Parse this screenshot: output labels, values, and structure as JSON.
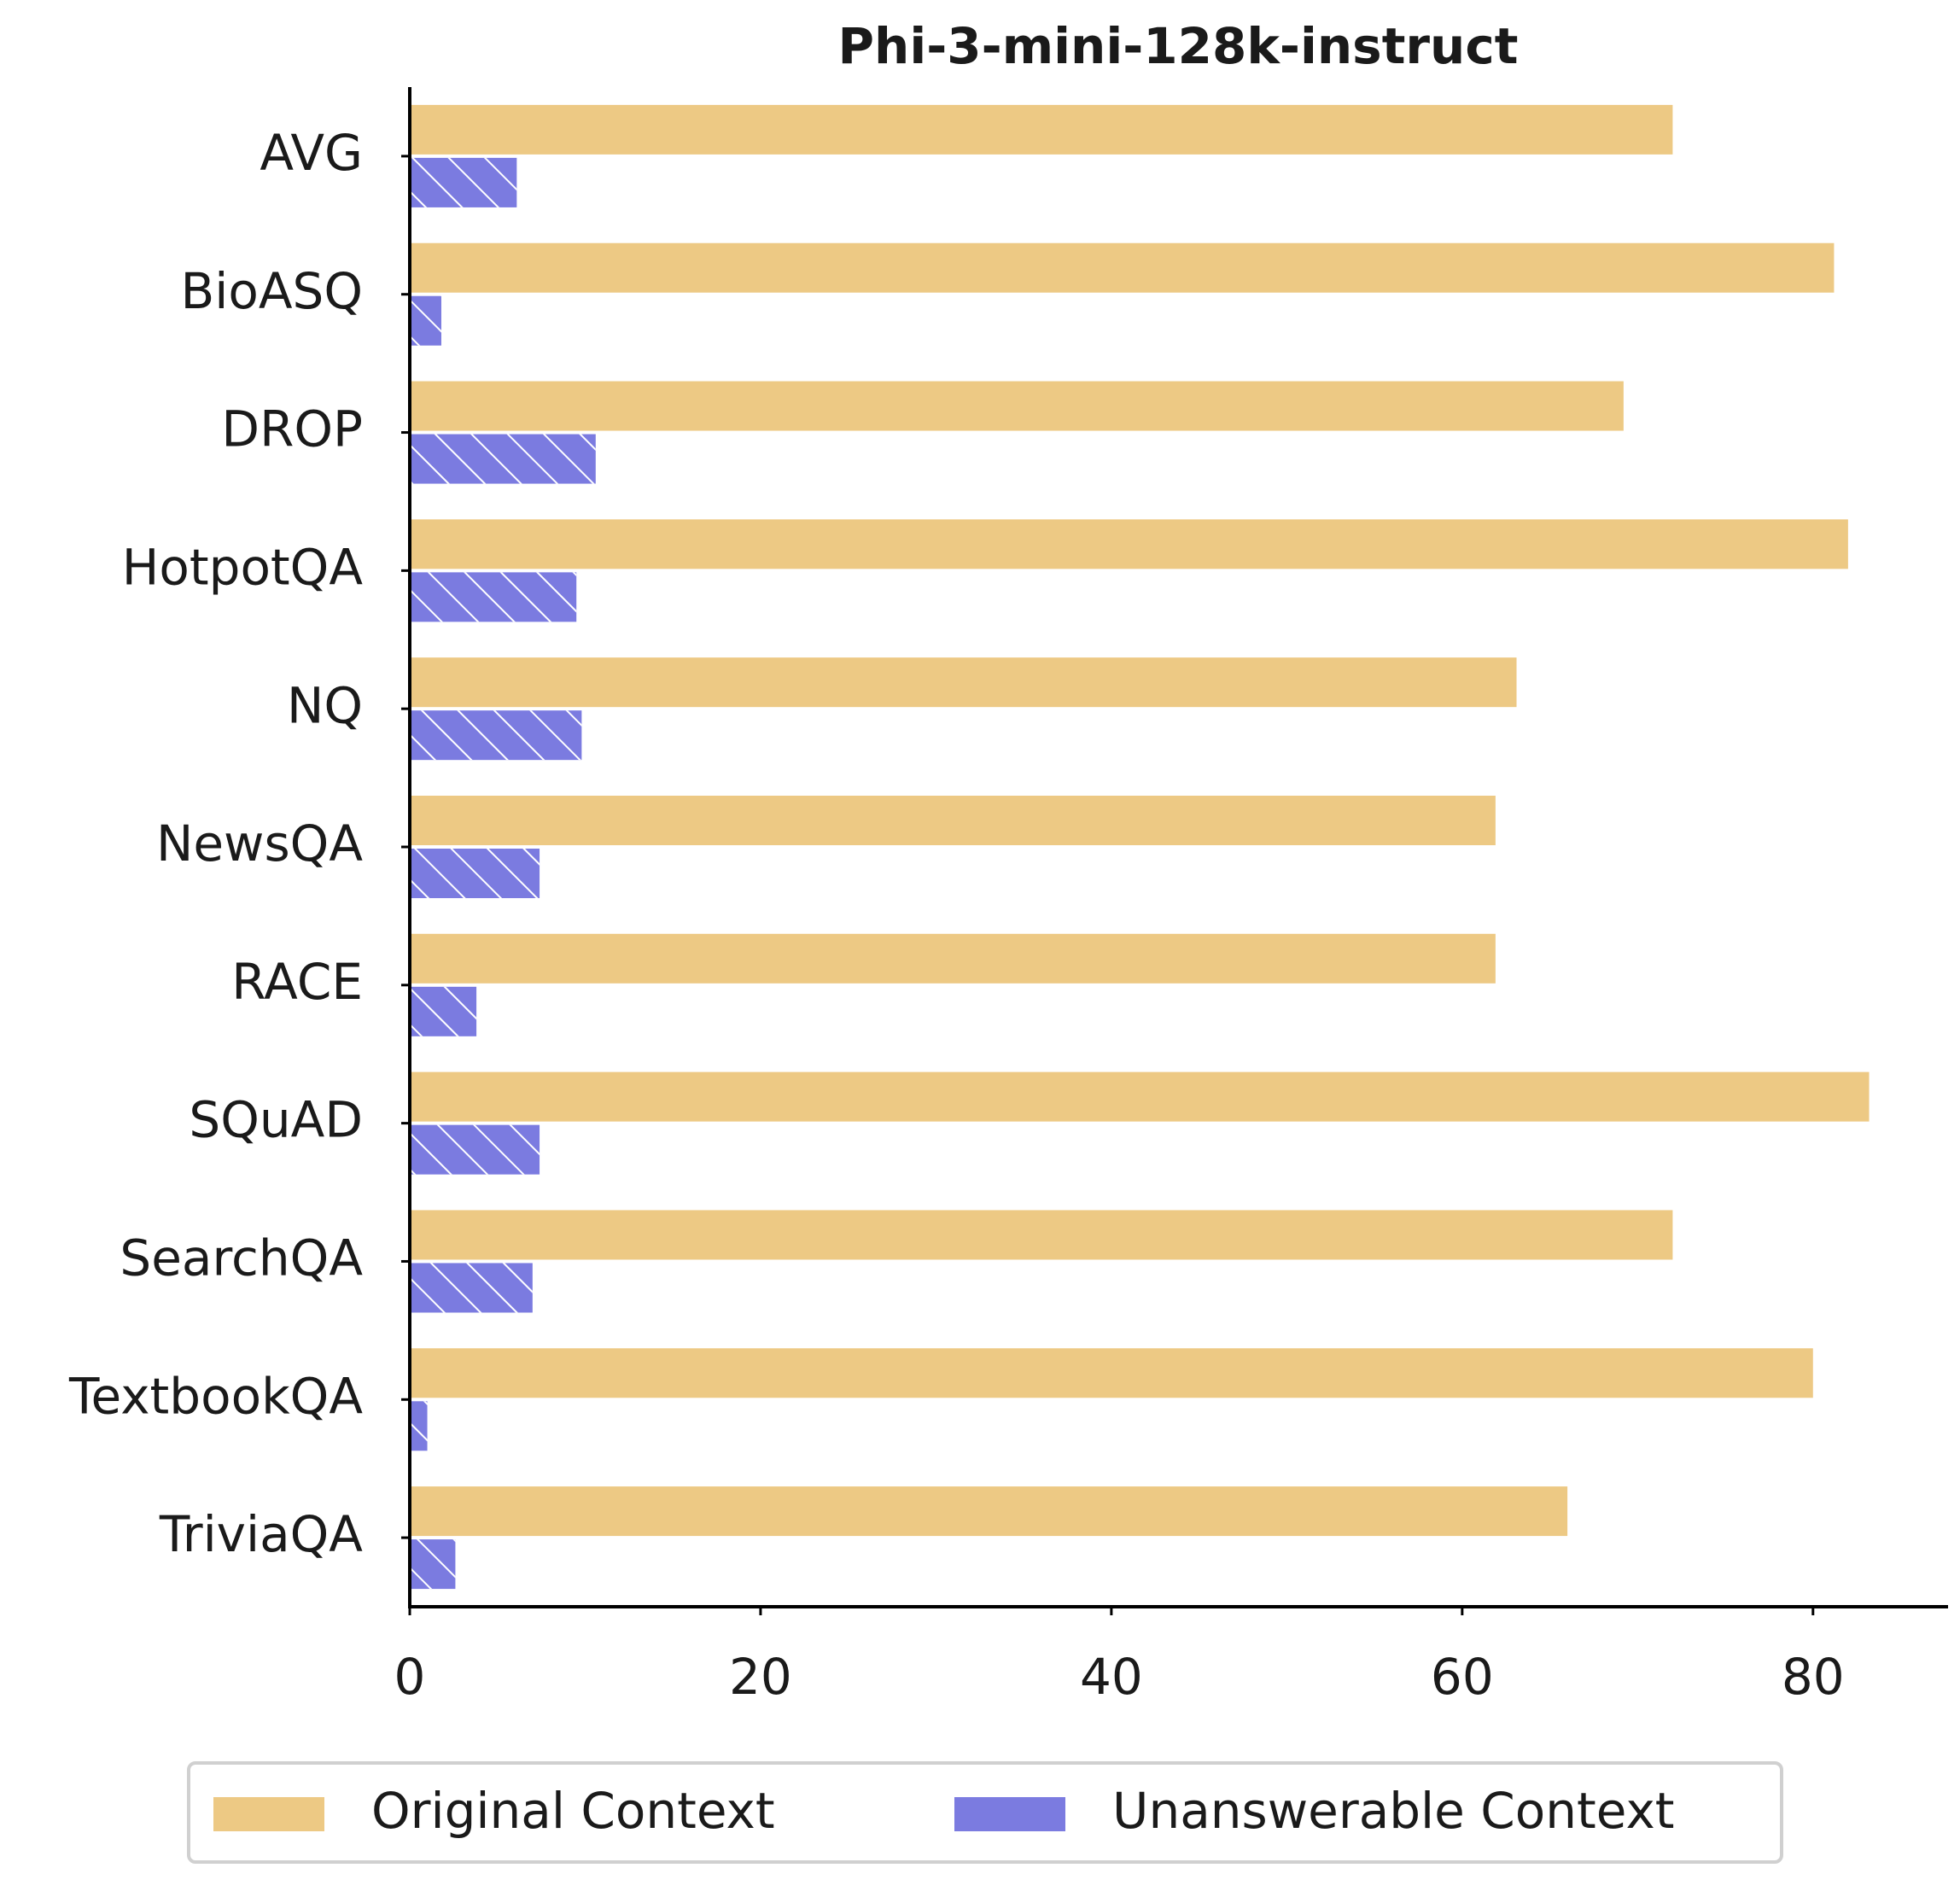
{
  "chart_data": {
    "type": "barh",
    "title": "Phi-3-mini-128k-instruct",
    "categories": [
      "AVG",
      "BioASQ",
      "DROP",
      "HotpotQA",
      "NQ",
      "NewsQA",
      "RACE",
      "SQuAD",
      "SearchQA",
      "TextbookQA",
      "TriviaQA"
    ],
    "series": [
      {
        "name": "Original Context",
        "color": "#edc984",
        "values": [
          72.0,
          81.2,
          69.2,
          82.0,
          63.1,
          61.9,
          61.9,
          83.2,
          72.0,
          80.0,
          66.0
        ]
      },
      {
        "name": "Unanswerable Context",
        "color": "#7b7be0",
        "hatch": "/",
        "values": [
          6.1,
          1.8,
          10.6,
          9.5,
          9.8,
          7.4,
          3.8,
          7.4,
          7.0,
          1.0,
          2.6
        ]
      }
    ],
    "xlim": [
      0,
      87.7
    ],
    "xticks": [
      0,
      20,
      40,
      60,
      80
    ],
    "legend": "bottom"
  }
}
